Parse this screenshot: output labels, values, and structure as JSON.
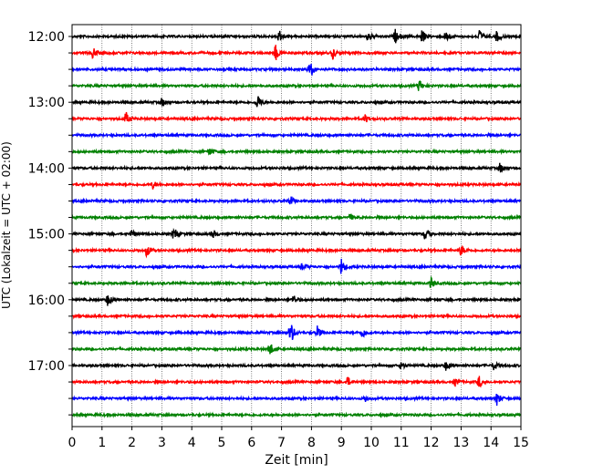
{
  "chart_data": {
    "type": "line",
    "title": "",
    "xlabel": "Zeit  [min]",
    "ylabel": "UTC (Lokalzeit = UTC + 02:00)",
    "xlim": [
      0,
      15
    ],
    "x_ticks": [
      "0",
      "1",
      "2",
      "3",
      "4",
      "5",
      "6",
      "7",
      "8",
      "9",
      "10",
      "11",
      "12",
      "13",
      "14",
      "15"
    ],
    "y_hour_labels": [
      "12:00",
      "13:00",
      "14:00",
      "15:00",
      "16:00",
      "17:00"
    ],
    "trace_colors": [
      "#000000",
      "#ff0000",
      "#0000ff",
      "#008000"
    ],
    "grid": "vertical dotted lines at each minute",
    "legend": "none",
    "traces": [
      {
        "start": "12:00",
        "color": "#000000",
        "events": [
          [
            6.9,
            0.9
          ],
          [
            9.9,
            0.7
          ],
          [
            10.8,
            0.8
          ],
          [
            11.7,
            0.8
          ],
          [
            12.5,
            0.8
          ],
          [
            13.6,
            0.9
          ],
          [
            14.2,
            0.7
          ]
        ]
      },
      {
        "start": "12:15",
        "color": "#ff0000",
        "events": [
          [
            0.7,
            0.7
          ],
          [
            6.8,
            1.0
          ],
          [
            8.7,
            0.8
          ]
        ]
      },
      {
        "start": "12:30",
        "color": "#0000ff",
        "events": [
          [
            7.9,
            0.5
          ],
          [
            8.0,
            0.5
          ]
        ]
      },
      {
        "start": "12:45",
        "color": "#008000",
        "events": [
          [
            11.6,
            0.8
          ]
        ]
      },
      {
        "start": "13:00",
        "color": "#000000",
        "events": [
          [
            3.0,
            0.5
          ],
          [
            6.2,
            1.0
          ]
        ]
      },
      {
        "start": "13:15",
        "color": "#ff0000",
        "events": [
          [
            1.8,
            0.8
          ],
          [
            9.8,
            0.5
          ]
        ]
      },
      {
        "start": "13:30",
        "color": "#0000ff",
        "events": []
      },
      {
        "start": "13:45",
        "color": "#008000",
        "events": [
          [
            4.6,
            0.5
          ]
        ]
      },
      {
        "start": "14:00",
        "color": "#000000",
        "events": [
          [
            14.3,
            0.6
          ]
        ]
      },
      {
        "start": "14:15",
        "color": "#ff0000",
        "events": [
          [
            2.7,
            0.5
          ]
        ]
      },
      {
        "start": "14:30",
        "color": "#0000ff",
        "events": [
          [
            7.3,
            0.6
          ]
        ]
      },
      {
        "start": "14:45",
        "color": "#008000",
        "events": [
          [
            9.3,
            0.4
          ]
        ]
      },
      {
        "start": "15:00",
        "color": "#000000",
        "events": [
          [
            2.0,
            0.5
          ],
          [
            3.4,
            0.8
          ],
          [
            4.7,
            0.5
          ],
          [
            11.8,
            0.9
          ]
        ]
      },
      {
        "start": "15:15",
        "color": "#ff0000",
        "events": [
          [
            2.5,
            0.8
          ],
          [
            13.0,
            0.7
          ]
        ]
      },
      {
        "start": "15:30",
        "color": "#0000ff",
        "events": [
          [
            7.7,
            0.5
          ],
          [
            9.0,
            1.0
          ]
        ]
      },
      {
        "start": "15:45",
        "color": "#008000",
        "events": [
          [
            12.0,
            0.7
          ]
        ]
      },
      {
        "start": "16:00",
        "color": "#000000",
        "events": [
          [
            1.2,
            0.8
          ],
          [
            7.4,
            0.6
          ]
        ]
      },
      {
        "start": "16:15",
        "color": "#ff0000",
        "events": []
      },
      {
        "start": "16:30",
        "color": "#0000ff",
        "events": [
          [
            7.3,
            1.6
          ],
          [
            8.2,
            0.8
          ],
          [
            9.7,
            0.7
          ]
        ]
      },
      {
        "start": "16:45",
        "color": "#008000",
        "events": [
          [
            6.6,
            1.0
          ]
        ]
      },
      {
        "start": "17:00",
        "color": "#000000",
        "events": [
          [
            11.0,
            0.5
          ],
          [
            12.5,
            0.6
          ],
          [
            14.1,
            0.6
          ]
        ]
      },
      {
        "start": "17:15",
        "color": "#ff0000",
        "events": [
          [
            9.2,
            0.6
          ],
          [
            12.8,
            0.5
          ],
          [
            13.6,
            0.8
          ]
        ]
      },
      {
        "start": "17:30",
        "color": "#0000ff",
        "events": [
          [
            9.8,
            0.4
          ],
          [
            14.2,
            0.9
          ]
        ]
      },
      {
        "start": "17:45",
        "color": "#008000",
        "events": []
      }
    ]
  }
}
